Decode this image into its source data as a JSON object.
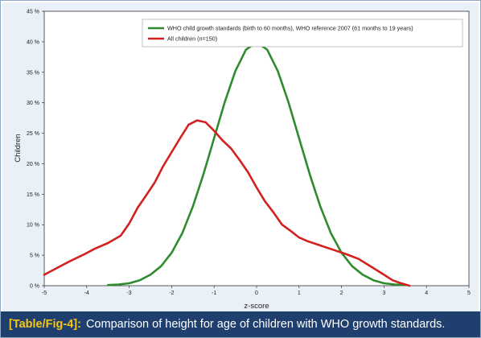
{
  "chart_data": {
    "type": "line",
    "xlabel": "z-score",
    "ylabel": "Children",
    "xlim": [
      -5,
      5
    ],
    "ylim": [
      0,
      45
    ],
    "x_ticks": [
      "-5",
      "-4",
      "-3",
      "-2",
      "-1",
      "0",
      "1",
      "2",
      "3",
      "4",
      "5"
    ],
    "y_ticks": [
      "0 %",
      "5 %",
      "10 %",
      "15 %",
      "20 %",
      "25 %",
      "30 %",
      "35 %",
      "40 %",
      "45 %"
    ],
    "grid": false,
    "legend_position": "top-right",
    "series": [
      {
        "name": "WHO child growth standards (birth to 60 months), WHO reference 2007 (61 months to 19 years)",
        "color": "#2e8b2e",
        "x": [
          -3.5,
          -3.25,
          -3,
          -2.75,
          -2.5,
          -2.25,
          -2,
          -1.75,
          -1.5,
          -1.25,
          -1,
          -0.75,
          -0.5,
          -0.25,
          0,
          0.25,
          0.5,
          0.75,
          1,
          1.25,
          1.5,
          1.75,
          2,
          2.25,
          2.5,
          2.75,
          3,
          3.25,
          3.5
        ],
        "y": [
          0.1,
          0.2,
          0.4,
          0.9,
          1.8,
          3.2,
          5.4,
          8.6,
          13.0,
          18.3,
          24.2,
          30.1,
          35.2,
          38.7,
          39.9,
          38.7,
          35.2,
          30.1,
          24.2,
          18.3,
          13.0,
          8.6,
          5.4,
          3.2,
          1.8,
          0.9,
          0.4,
          0.2,
          0.1
        ]
      },
      {
        "name": "All children (n=150)",
        "color": "#d42020",
        "x": [
          -5,
          -4.7,
          -4.4,
          -4.1,
          -3.8,
          -3.5,
          -3.2,
          -3.0,
          -2.8,
          -2.6,
          -2.4,
          -2.2,
          -2.0,
          -1.8,
          -1.6,
          -1.4,
          -1.2,
          -1.0,
          -0.8,
          -0.6,
          -0.4,
          -0.2,
          0,
          0.2,
          0.4,
          0.6,
          0.8,
          1.0,
          1.2,
          1.5,
          1.8,
          2.1,
          2.4,
          2.7,
          3.0,
          3.2,
          3.4,
          3.6
        ],
        "y": [
          1.8,
          2.9,
          4.0,
          5.0,
          6.1,
          7.0,
          8.2,
          10.2,
          12.8,
          14.8,
          16.9,
          19.6,
          21.9,
          24.2,
          26.4,
          27.1,
          26.8,
          25.4,
          23.8,
          22.5,
          20.6,
          18.6,
          16.1,
          13.8,
          12.0,
          10.0,
          9.0,
          7.9,
          7.3,
          6.6,
          5.9,
          5.2,
          4.4,
          3.1,
          1.8,
          0.9,
          0.4,
          0.0
        ]
      }
    ]
  },
  "caption": {
    "label": "[Table/Fig-4]:",
    "text": "Comparison of height for age of children with WHO growth standards."
  }
}
